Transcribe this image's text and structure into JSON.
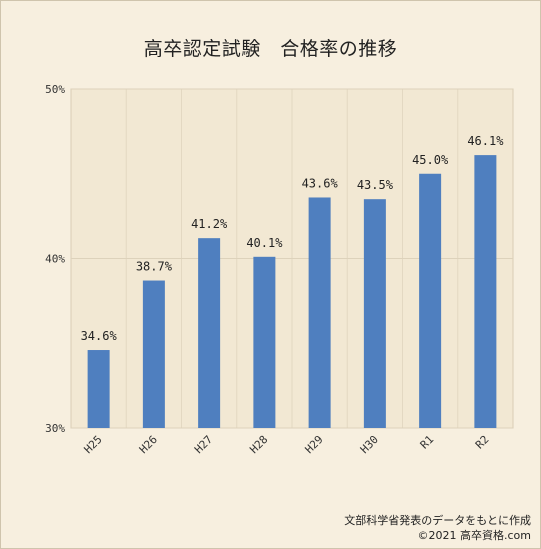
{
  "chart_data": {
    "type": "bar",
    "title": "高卒認定試験　合格率の推移",
    "categories": [
      "H25",
      "H26",
      "H27",
      "H28",
      "H29",
      "H30",
      "R1",
      "R2"
    ],
    "values": [
      34.6,
      38.7,
      41.2,
      40.1,
      43.6,
      43.5,
      45.0,
      46.1
    ],
    "value_labels": [
      "34.6%",
      "38.7%",
      "41.2%",
      "40.1%",
      "43.6%",
      "43.5%",
      "45.0%",
      "46.1%"
    ],
    "yticks": [
      30,
      40,
      50
    ],
    "ytick_labels": [
      "30%",
      "40%",
      "50%"
    ],
    "ylim": [
      30,
      50
    ],
    "grid": true,
    "bar_color": "#4f7fbf",
    "plot_background": "#f2e8d3",
    "xlabel": "",
    "ylabel": ""
  },
  "source": {
    "line1": "文部科学省発表のデータをもとに作成",
    "line2": "©2021 高卒資格.com"
  }
}
